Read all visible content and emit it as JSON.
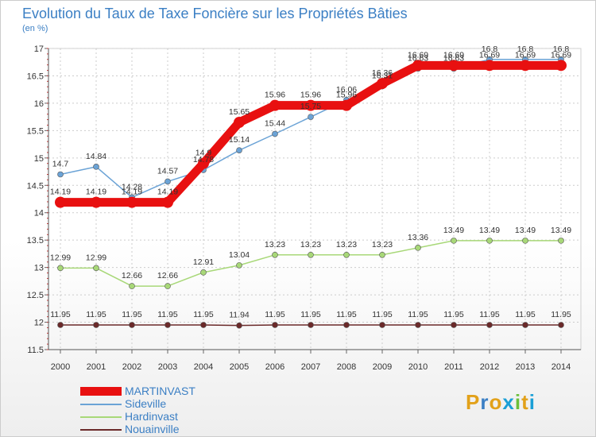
{
  "title": "Evolution du Taux de Taxe Foncière sur les Propriétés Bâties",
  "unit": "(en %)",
  "logo": {
    "letters": [
      "P",
      "r",
      "o",
      "x",
      "i",
      "t",
      "i"
    ],
    "colors": [
      "#e2a11a",
      "#3b7fc4",
      "#e2a11a",
      "#1a9fd6",
      "#6abf3a",
      "#e2a11a",
      "#1a9fd6"
    ]
  },
  "chart_data": {
    "type": "line",
    "title": "Evolution du Taux de Taxe Foncière sur les Propriétés Bâties",
    "ylabel": "(en %)",
    "xlabel": "",
    "ylim": [
      11.5,
      17
    ],
    "yticks": [
      11.5,
      12,
      12.5,
      13,
      13.5,
      14,
      14.5,
      15,
      15.5,
      16,
      16.5,
      17
    ],
    "ytick_labels": [
      "11.5",
      "12",
      "12.5",
      "13",
      "13.5",
      "14",
      "14.5",
      "15",
      "15.5",
      "16",
      "16.5",
      "17"
    ],
    "grid": true,
    "x": [
      "2000",
      "2001",
      "2002",
      "2003",
      "2004",
      "2005",
      "2006",
      "2007",
      "2008",
      "2009",
      "2010",
      "2011",
      "2012",
      "2013",
      "2014"
    ],
    "series": [
      {
        "name": "Nouainville",
        "color": "#6b2a2a",
        "values": [
          11.95,
          11.95,
          11.95,
          11.95,
          11.95,
          11.94,
          11.95,
          11.95,
          11.95,
          11.95,
          11.95,
          11.95,
          11.95,
          11.95,
          11.95
        ],
        "labels": [
          "11.95",
          "11.95",
          "11.95",
          "11.95",
          "11.95",
          "11.94",
          "11.95",
          "11.95",
          "11.95",
          "11.95",
          "11.95",
          "11.95",
          "11.95",
          "11.95",
          "11.95"
        ]
      },
      {
        "name": "Hardinvast",
        "color": "#a8d878",
        "values": [
          12.99,
          12.99,
          12.66,
          12.66,
          12.91,
          13.04,
          13.23,
          13.23,
          13.23,
          13.23,
          13.36,
          13.49,
          13.49,
          13.49,
          13.49
        ],
        "labels": [
          "12.99",
          "12.99",
          "12.66",
          "12.66",
          "12.91",
          "13.04",
          "13.23",
          "13.23",
          "13.23",
          "13.23",
          "13.36",
          "13.49",
          "13.49",
          "13.49",
          "13.49"
        ]
      },
      {
        "name": "Sideville",
        "color": "#6ba3d6",
        "values": [
          14.7,
          14.84,
          14.28,
          14.57,
          14.78,
          15.14,
          15.44,
          15.75,
          16.06,
          16.31,
          16.63,
          16.63,
          16.8,
          16.8,
          16.8
        ],
        "labels": [
          "14.7",
          "14.84",
          "14.28",
          "14.57",
          "14.78",
          "15.14",
          "15.44",
          "15.75",
          "16.06",
          "16.31",
          "16.63",
          "16.63",
          "16.8",
          "16.8",
          "16.8"
        ]
      },
      {
        "name": "MARTINVAST",
        "color": "#e81010",
        "values": [
          14.19,
          14.19,
          14.19,
          14.19,
          14.9,
          15.65,
          15.96,
          15.96,
          15.96,
          16.36,
          16.69,
          16.69,
          16.69,
          16.69,
          16.69
        ],
        "labels": [
          "14.19",
          "14.19",
          "14.19",
          "14.19",
          "14.9",
          "15.65",
          "15.96",
          "15.96",
          "15.96",
          "16.36",
          "16.69",
          "16.69",
          "16.69",
          "16.69",
          "16.69"
        ]
      }
    ],
    "legend": [
      {
        "name": "MARTINVAST",
        "color": "#e81010"
      },
      {
        "name": "Sideville",
        "color": "#6ba3d6"
      },
      {
        "name": "Hardinvast",
        "color": "#a8d878"
      },
      {
        "name": "Nouainville",
        "color": "#6b2a2a"
      }
    ]
  }
}
